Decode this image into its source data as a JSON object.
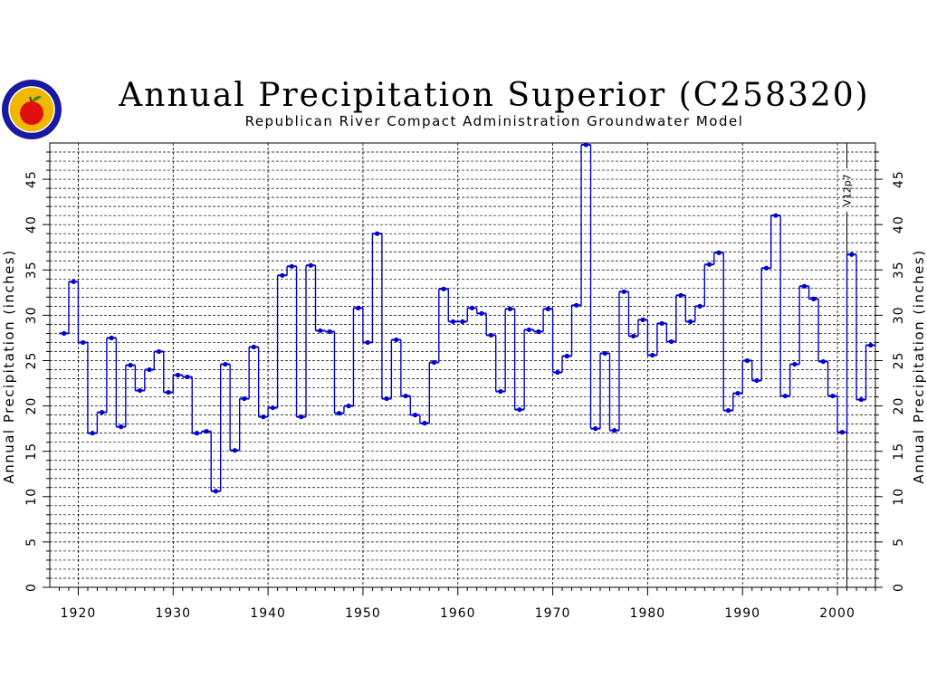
{
  "colors": {
    "series": "#0000cc",
    "grid": "#000000",
    "logo_ring": "#1a1aa0",
    "logo_fill": "#f0b800",
    "apple": "#e01010",
    "leaf": "#2a8a2a"
  },
  "logo": {
    "icon": "agency-seal-apple-icon"
  },
  "chart_data": {
    "type": "line",
    "step": true,
    "title": "Annual Precipitation Superior (C258320)",
    "subtitle": "Republican River Compact Administration Groundwater Model",
    "ylabel": "Annual Precipitation (inches)",
    "ylabel_right": "Annual Precipitation (inches)",
    "xlabel": "",
    "xlim": [
      1917,
      2004
    ],
    "ylim": [
      0,
      49
    ],
    "xticks": [
      1920,
      1930,
      1940,
      1950,
      1960,
      1970,
      1980,
      1990,
      2000
    ],
    "yticks": [
      0,
      5,
      10,
      15,
      20,
      25,
      30,
      35,
      40,
      45
    ],
    "grid": true,
    "annotations": [
      {
        "x": 2001,
        "text": "V12p7"
      }
    ],
    "series": [
      {
        "x": [
          1918,
          1919,
          1920,
          1921,
          1922,
          1923,
          1924,
          1925,
          1926,
          1927,
          1928,
          1929,
          1930,
          1931,
          1932,
          1933,
          1934,
          1935,
          1936,
          1937,
          1938,
          1939,
          1940,
          1941,
          1942,
          1943,
          1944,
          1945,
          1946,
          1947,
          1948,
          1949,
          1950,
          1951,
          1952,
          1953,
          1954,
          1955,
          1956,
          1957,
          1958,
          1959,
          1960,
          1961,
          1962,
          1963,
          1964,
          1965,
          1966,
          1967,
          1968,
          1969,
          1970,
          1971,
          1972,
          1973,
          1974,
          1975,
          1976,
          1977,
          1978,
          1979,
          1980,
          1981,
          1982,
          1983,
          1984,
          1985,
          1986,
          1987,
          1988,
          1989,
          1990,
          1991,
          1992,
          1993,
          1994,
          1995,
          1996,
          1997,
          1998,
          1999,
          2000,
          2001,
          2002,
          2003
        ],
        "values": [
          28.0,
          33.7,
          27.0,
          17.0,
          19.3,
          27.5,
          17.7,
          24.5,
          21.7,
          24.0,
          26.0,
          21.5,
          23.4,
          23.2,
          17.0,
          17.2,
          10.6,
          24.6,
          15.1,
          20.8,
          26.5,
          18.8,
          19.8,
          34.4,
          35.4,
          18.8,
          35.5,
          28.3,
          28.2,
          19.2,
          20.0,
          30.8,
          27.0,
          39.0,
          20.8,
          27.3,
          21.1,
          19.0,
          18.1,
          24.8,
          32.9,
          29.3,
          29.3,
          30.8,
          30.2,
          27.8,
          21.6,
          30.7,
          19.6,
          28.4,
          28.2,
          30.7,
          23.7,
          25.5,
          31.1,
          48.8,
          17.5,
          25.8,
          17.3,
          32.6,
          27.7,
          29.5,
          25.6,
          29.1,
          27.1,
          32.2,
          29.3,
          31.0,
          35.6,
          36.9,
          19.5,
          21.4,
          25.0,
          22.8,
          35.2,
          41.0,
          21.1,
          24.6,
          33.2,
          31.8,
          24.9,
          21.1,
          17.1,
          36.7,
          20.7,
          26.7
        ]
      }
    ]
  }
}
